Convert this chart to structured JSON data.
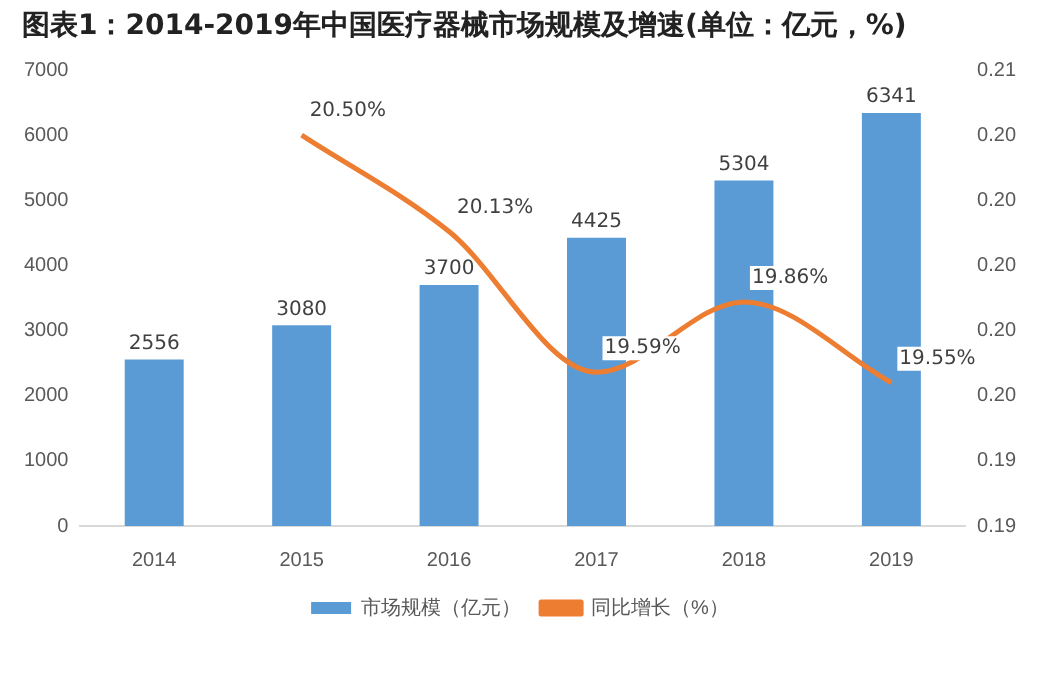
{
  "chart_data": {
    "type": "bar",
    "title": "图表1：2014-2019年中国医疗器械市场规模及增速(单位：亿元，%)",
    "categories": [
      "2014",
      "2015",
      "2016",
      "2017",
      "2018",
      "2019"
    ],
    "series": [
      {
        "name": "市场规模（亿元）",
        "color": "#5b9bd5",
        "values": [
          2556,
          3080,
          3700,
          4425,
          5304,
          6341
        ],
        "value_labels": [
          "2556",
          "3080",
          "3700",
          "4425",
          "5304",
          "6341"
        ]
      },
      {
        "name": "同比增长（%）",
        "type": "line",
        "axis": "y2",
        "color": "#ed7d31",
        "values": [
          null,
          0.205,
          0.2013,
          0.1959,
          0.1986,
          0.1955
        ],
        "value_labels": [
          null,
          "20.50%",
          "20.13%",
          "19.59%",
          "19.86%",
          "19.55%"
        ]
      }
    ],
    "ylim": [
      0,
      7000
    ],
    "yticks": [
      0,
      1000,
      2000,
      3000,
      4000,
      5000,
      6000,
      7000
    ],
    "y2lim": [
      0.19,
      0.2075
    ],
    "y2ticks": [
      {
        "value": 0.19,
        "label": "0.19"
      },
      {
        "value": 0.1925,
        "label": "0.19"
      },
      {
        "value": 0.195,
        "label": "0.20"
      },
      {
        "value": 0.1975,
        "label": "0.20"
      },
      {
        "value": 0.2,
        "label": "0.20"
      },
      {
        "value": 0.2025,
        "label": "0.20"
      },
      {
        "value": 0.205,
        "label": "0.20"
      },
      {
        "value": 0.2075,
        "label": "0.21"
      }
    ],
    "grid": false,
    "legend": "bottom",
    "marker": "none"
  }
}
